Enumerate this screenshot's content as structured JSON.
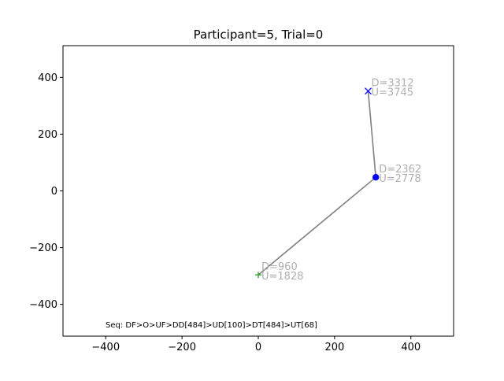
{
  "chart_data": {
    "type": "scatter",
    "title": "Participant=5, Trial=0",
    "xlabel": "",
    "ylabel": "",
    "xlim": [
      -512,
      512
    ],
    "ylim": [
      -512,
      512
    ],
    "x_ticks": [
      -400,
      -200,
      0,
      200,
      400
    ],
    "y_ticks": [
      -400,
      -200,
      0,
      200,
      400
    ],
    "tick_labels": {
      "x": [
        "−400",
        "−200",
        "0",
        "200",
        "400"
      ],
      "y": [
        "−400",
        "−200",
        "0",
        "200",
        "400"
      ]
    },
    "grid": false,
    "path": [
      {
        "x": 0,
        "y": -296
      },
      {
        "x": 308,
        "y": 48
      },
      {
        "x": 288,
        "y": 352
      }
    ],
    "points": [
      {
        "x": 0,
        "y": -296,
        "marker": "plus",
        "color": "#2ca02c",
        "down": "D=960",
        "up": "U=1828"
      },
      {
        "x": 308,
        "y": 48,
        "marker": "circle",
        "color": "#0000ff",
        "down": "D=2362",
        "up": "U=2778"
      },
      {
        "x": 288,
        "y": 352,
        "marker": "x",
        "color": "#0000ff",
        "down": "D=3312",
        "up": "U=3745"
      }
    ],
    "annotation": "Seq: DF>O>UF>DD[484]>UD[100]>DT[484]>UT[68]",
    "colors": {
      "path": "#808080",
      "label": "#b0b0b0"
    }
  }
}
